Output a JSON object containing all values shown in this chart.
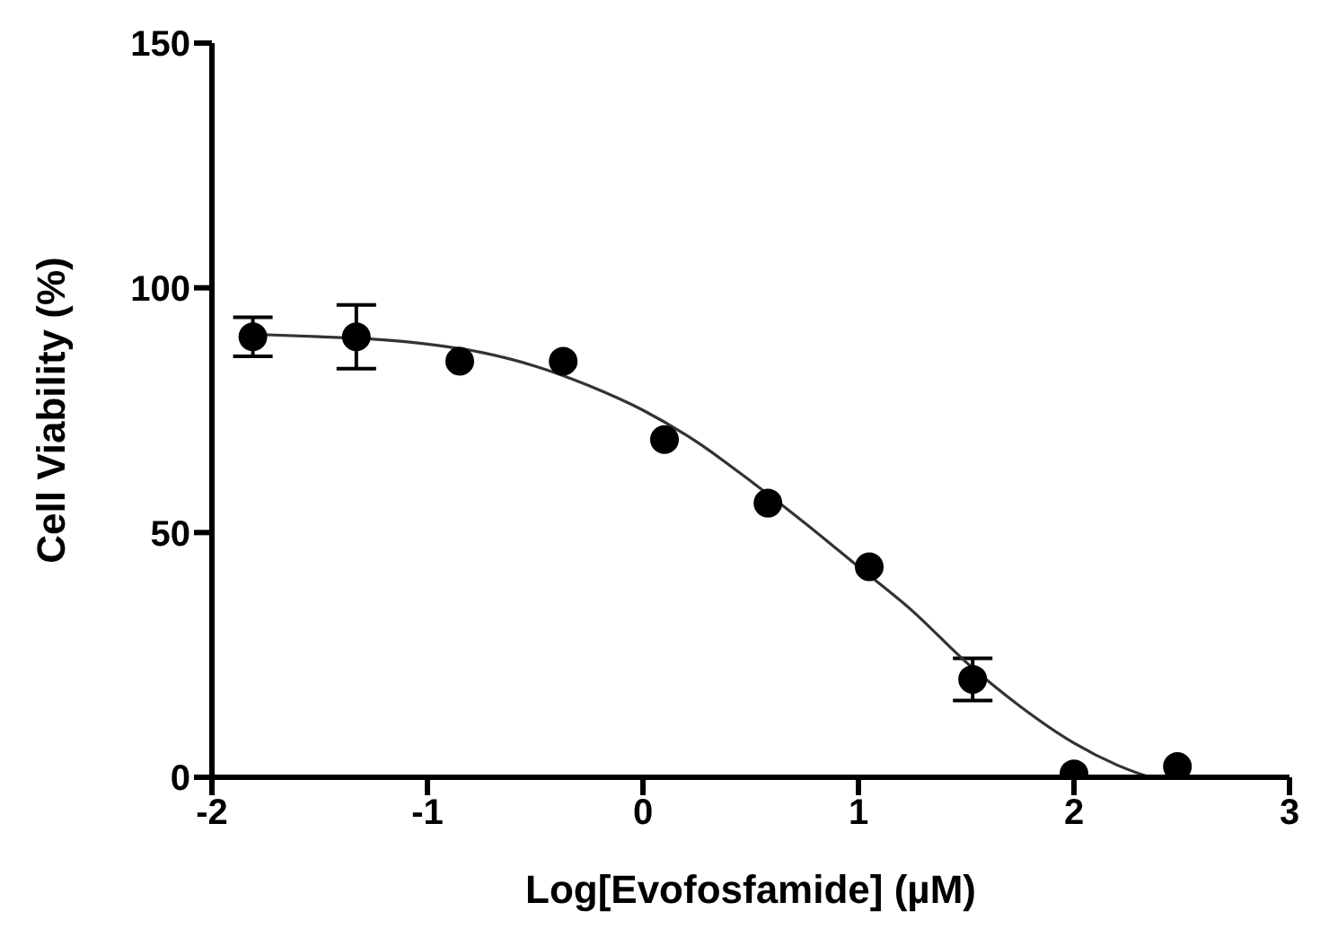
{
  "chart_data": {
    "type": "scatter",
    "xlabel": "Log[Evofosfamide] (µM)",
    "ylabel": "Cell Viability (%)",
    "xlim": [
      -2,
      3
    ],
    "xticks": [
      -2,
      -1,
      0,
      1,
      2,
      3
    ],
    "ylim": [
      0,
      150
    ],
    "yticks": [
      0,
      50,
      100,
      150
    ],
    "grid": false,
    "marker": "circle",
    "series": [
      {
        "color": "#000000",
        "x": [
          -1.81,
          -1.33,
          -0.85,
          -0.37,
          0.1,
          0.58,
          1.05,
          1.53,
          2.0,
          2.48
        ],
        "values": [
          90,
          90,
          85,
          85,
          69,
          56,
          43,
          20,
          0.7,
          2.2
        ],
        "errors": [
          4,
          6.5,
          null,
          null,
          null,
          null,
          null,
          4.3,
          null,
          null
        ]
      },
      {
        "type": "line",
        "color": "#333333",
        "marker": "none",
        "line_style": "solid",
        "x": [
          -1.8,
          -1.5,
          -1.25,
          -1,
          -0.75,
          -0.5,
          -0.25,
          0,
          0.25,
          0.5,
          0.75,
          1,
          1.25,
          1.5,
          1.75,
          2,
          2.2,
          2.35
        ],
        "values": [
          90.5,
          90,
          89.5,
          88.5,
          86.8,
          84,
          80,
          75,
          68.5,
          60.5,
          52,
          43,
          34,
          23.5,
          14.5,
          7,
          2.5,
          0
        ]
      }
    ]
  }
}
